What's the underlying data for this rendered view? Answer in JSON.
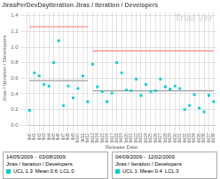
{
  "chart_data": {
    "type": "scatter",
    "title": "JirasPerDevDayIteration Jiras / Iteration / Developers",
    "y_label": "Jiras / Iteration / Developers",
    "x_label": "Release Date",
    "categories": [
      "lbl0",
      "lbl1",
      "lbl2",
      "lbl3",
      "lbl4",
      "lbl5",
      "lbl6",
      "lbl7",
      "lbl8",
      "lbl9",
      "lbl10",
      "lbl11",
      "lbl12",
      "lbl13",
      "lbl14",
      "lbl15",
      "lbl16",
      "lbl17",
      "lbl18",
      "lbl19",
      "lbl20",
      "lbl21",
      "lbl22",
      "lbl23",
      "lbl24",
      "lbl25",
      "lbl26",
      "lbl27",
      "lbl28",
      "lbl29",
      "lbl30",
      "lbl31",
      "lbl32",
      "lbl33",
      "lbl34",
      "lbl35",
      "lbl36",
      "lbl37",
      "lbl38"
    ],
    "ylim": [
      0.0,
      1.45
    ],
    "yticks": [
      {
        "value": 0.0,
        "label": "0.0"
      },
      0.2,
      0.4,
      0.6,
      0.8,
      {
        "value": 1.0,
        "label": "1.0"
      },
      1.2,
      1.4
    ],
    "grid": true,
    "series": [
      {
        "type": "scatter",
        "marker": "square",
        "color": "#00cccc",
        "values": [
          0.19,
          0.67,
          0.63,
          0.52,
          0.5,
          0.8,
          1.08,
          0.25,
          0.5,
          0.35,
          0.47,
          0.63,
          0.3,
          null,
          null,
          null,
          null,
          null,
          null,
          null,
          null,
          null,
          null,
          null,
          null,
          null,
          null,
          null,
          null,
          null,
          null,
          null,
          null,
          null,
          null,
          null,
          null,
          null,
          null
        ]
      },
      {
        "type": "scatter",
        "marker": "square",
        "color": "#00cccc",
        "values": [
          null,
          null,
          null,
          null,
          null,
          null,
          null,
          null,
          null,
          null,
          null,
          null,
          null,
          0.78,
          0.49,
          0.43,
          0.3,
          0.41,
          0.8,
          0.67,
          0.45,
          0.44,
          0.59,
          0.38,
          0.52,
          0.43,
          0.44,
          0.59,
          0.49,
          0.46,
          0.5,
          0.47,
          0.2,
          0.25,
          0.39,
          0.22,
          0.17,
          0.38,
          0.3
        ]
      },
      {
        "type": "line",
        "line_style": "solid",
        "color": "#888888",
        "values": [
          0.57,
          0.57,
          0.57,
          0.57,
          0.57,
          0.57,
          0.57,
          0.57,
          0.57,
          0.57,
          0.57,
          0.57,
          0.57,
          null,
          null,
          null,
          null,
          null,
          null,
          null,
          null,
          null,
          null,
          null,
          null,
          null,
          null,
          null,
          null,
          null,
          null,
          null,
          null,
          null,
          null,
          null,
          null,
          null,
          null
        ]
      },
      {
        "type": "line",
        "line_style": "solid",
        "color": "#888888",
        "values": [
          null,
          null,
          null,
          null,
          null,
          null,
          null,
          null,
          null,
          null,
          null,
          null,
          null,
          0.44,
          0.44,
          0.44,
          0.44,
          0.44,
          0.44,
          0.44,
          0.44,
          0.44,
          0.44,
          0.44,
          0.44,
          0.44,
          0.44,
          0.44,
          0.44,
          0.44,
          0.44,
          0.44,
          0.44,
          0.44,
          0.44,
          0.44,
          0.44,
          0.44,
          0.44
        ]
      },
      {
        "type": "line",
        "line_style": "solid",
        "color": "#ff7070",
        "values": [
          1.26,
          1.26,
          1.26,
          1.26,
          1.26,
          1.26,
          1.26,
          1.26,
          1.26,
          1.26,
          1.26,
          1.26,
          1.26,
          null,
          null,
          null,
          null,
          null,
          null,
          null,
          null,
          null,
          null,
          null,
          null,
          null,
          null,
          null,
          null,
          null,
          null,
          null,
          null,
          null,
          null,
          null,
          null,
          null,
          null
        ]
      },
      {
        "type": "line",
        "line_style": "solid",
        "color": "#ff7070",
        "values": [
          null,
          null,
          null,
          null,
          null,
          null,
          null,
          null,
          null,
          null,
          null,
          null,
          null,
          0.95,
          0.95,
          0.95,
          0.95,
          0.95,
          0.95,
          0.95,
          0.95,
          0.95,
          0.95,
          0.95,
          0.95,
          0.95,
          0.95,
          0.95,
          0.95,
          0.95,
          0.95,
          0.95,
          0.95,
          0.95,
          0.95,
          0.95,
          0.95,
          0.95,
          0.95
        ]
      }
    ],
    "annotations": [
      {
        "text": "Trial Ver",
        "color": "#c8c8c8"
      },
      {
        "lines": [
          "14/05/2009 -",
          "03/08/2009",
          "Jiras / Iteration / Developers",
          "UCL 1.3",
          "Mean 0.6",
          "LCL 0"
        ],
        "color": "#00cccc"
      },
      {
        "lines": [
          "04/09/2009 -",
          "12/02/2009",
          "Jiras / Iteration / Developers",
          "UCL 1",
          "Mean 0.4",
          "LCL 0"
        ],
        "color": "#00cccc"
      }
    ]
  }
}
